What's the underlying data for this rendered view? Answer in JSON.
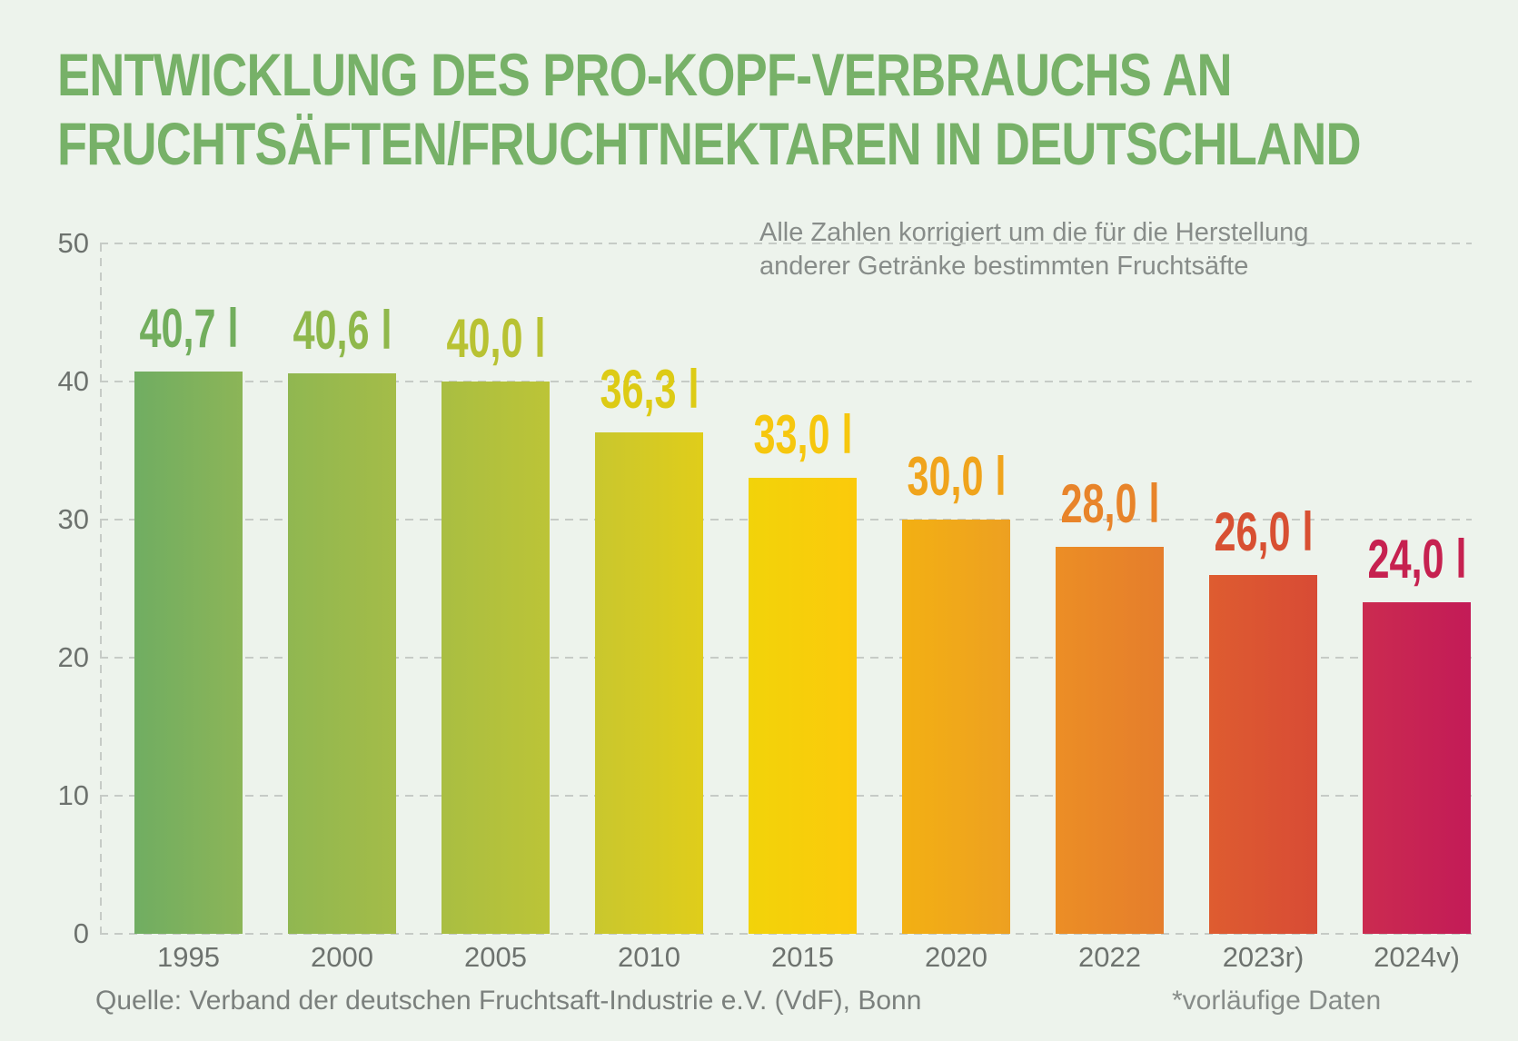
{
  "title": {
    "line1": "ENTWICKLUNG DES PRO-KOPF-VERBRAUCHS AN",
    "line2": "FRUCHTSÄFTEN/FRUCHTNEKTAREN IN DEUTSCHLAND"
  },
  "annotation": {
    "line1": "Alle Zahlen korrigiert um die für die Herstellung",
    "line2": "anderer Getränke bestimmten Fruchtsäfte"
  },
  "footer": {
    "source": "Quelle: Verband der deutschen Fruchtsaft-Industrie e.V. (VdF), Bonn",
    "note": "*vorläufige Daten"
  },
  "colors": {
    "background": "#edf3ec",
    "title_green": "#77b168",
    "gridline": "#c6cbc6",
    "axis_text": "#6d726e",
    "annotation_text": "#878c89",
    "source_text": "#7b807d"
  },
  "chart_data": {
    "type": "bar",
    "title": "Entwicklung des Pro-Kopf-Verbrauchs an Fruchtsäften/Fruchtnektaren in Deutschland",
    "unit": "l",
    "ylabel": "",
    "xlabel": "",
    "ylim": [
      0,
      50
    ],
    "yticks": [
      50,
      40,
      30,
      20,
      10,
      0
    ],
    "grid": "dashed horizontal gridlines and dashed y-axis",
    "legend": "none",
    "categories": [
      "1995",
      "2000",
      "2005",
      "2010",
      "2015",
      "2020",
      "2022",
      "2023r)",
      "2024v)"
    ],
    "values": [
      40.7,
      40.6,
      40.0,
      36.3,
      33.0,
      30.0,
      28.0,
      26.0,
      24.0
    ],
    "bars": [
      {
        "year": "1995",
        "value": 40.7,
        "label": "40,7",
        "color_left": "#70ad62",
        "color_right": "#8cb557",
        "label_color": "#72ae5d"
      },
      {
        "year": "2000",
        "value": 40.6,
        "label": "40,6",
        "color_left": "#90b751",
        "color_right": "#a4bc48",
        "label_color": "#8fb84b"
      },
      {
        "year": "2005",
        "value": 40.0,
        "label": "40,0",
        "color_left": "#a9be42",
        "color_right": "#bcc437",
        "label_color": "#b8c233"
      },
      {
        "year": "2010",
        "value": 36.3,
        "label": "36,3",
        "color_left": "#c9c72e",
        "color_right": "#e0cd1a",
        "label_color": "#ddcb15"
      },
      {
        "year": "2015",
        "value": 33.0,
        "label": "33,0",
        "color_left": "#f2d30a",
        "color_right": "#fbca0b",
        "label_color": "#f6c70e"
      },
      {
        "year": "2020",
        "value": 30.0,
        "label": "30,0",
        "color_left": "#f3b013",
        "color_right": "#eda021",
        "label_color": "#f0a41c"
      },
      {
        "year": "2022",
        "value": 28.0,
        "label": "28,0",
        "color_left": "#ec8e25",
        "color_right": "#e57d2c",
        "label_color": "#e8842a"
      },
      {
        "year": "2023r)",
        "value": 26.0,
        "label": "26,0",
        "color_left": "#de5c30",
        "color_right": "#d84b35",
        "label_color": "#d85032"
      },
      {
        "year": "2024v)",
        "value": 24.0,
        "label": "24,0",
        "color_left": "#cb2b50",
        "color_right": "#c31b57",
        "label_color": "#c62150"
      }
    ]
  }
}
